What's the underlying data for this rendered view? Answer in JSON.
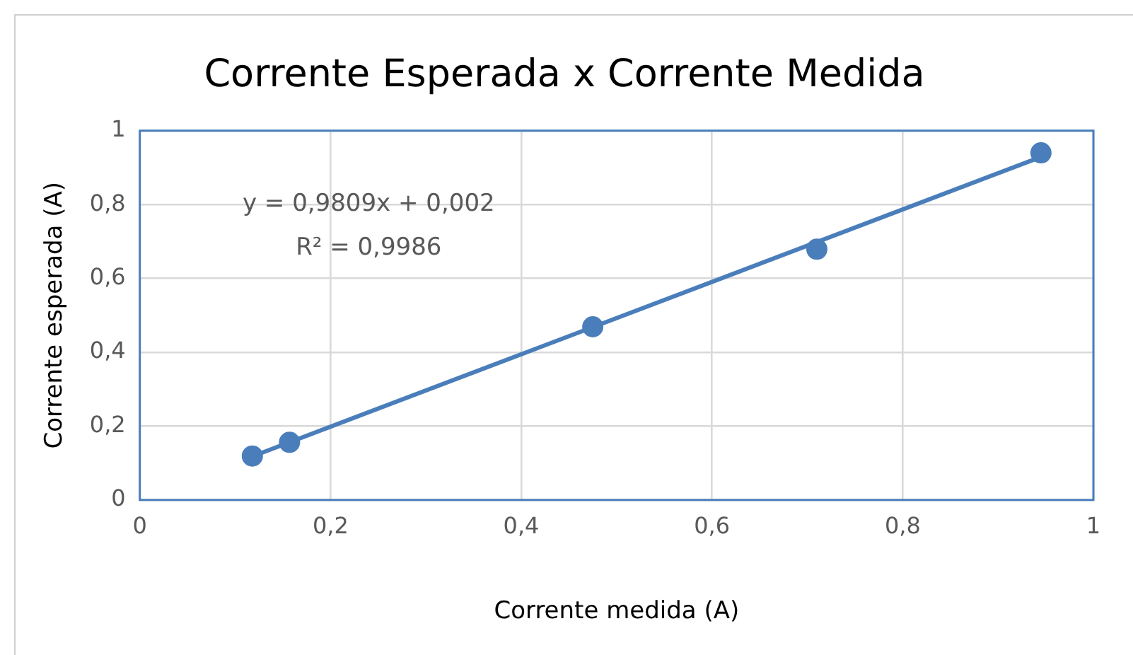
{
  "chart_data": {
    "type": "scatter",
    "title": "Corrente Esperada x Corrente Medida",
    "xlabel": "Corrente medida (A)",
    "ylabel": "Corrente esperada (A)",
    "xlim": [
      0,
      1
    ],
    "xticks": [
      {
        "value": 0,
        "label": "0"
      },
      {
        "value": 0.2,
        "label": "0,2"
      },
      {
        "value": 0.4,
        "label": "0,4"
      },
      {
        "value": 0.6,
        "label": "0,6"
      },
      {
        "value": 0.8,
        "label": "0,8"
      },
      {
        "value": 1,
        "label": "1"
      }
    ],
    "ylim": [
      0,
      1
    ],
    "yticks": [
      {
        "value": 0,
        "label": "0"
      },
      {
        "value": 0.2,
        "label": "0,2"
      },
      {
        "value": 0.4,
        "label": "0,4"
      },
      {
        "value": 0.6,
        "label": "0,6"
      },
      {
        "value": 0.8,
        "label": "0,8"
      },
      {
        "value": 1,
        "label": "1"
      }
    ],
    "grid": true,
    "legend": false,
    "marker": "circle",
    "series": [
      {
        "type": "scatter",
        "color": "#4a7ebb",
        "x": [
          0.118,
          0.157,
          0.475,
          0.71,
          0.945
        ],
        "values": [
          0.119,
          0.156,
          0.469,
          0.679,
          0.94
        ]
      },
      {
        "type": "line",
        "color": "#4a7ebb",
        "x": [
          0.118,
          0.945
        ],
        "values": [
          0.118,
          0.929
        ],
        "marker": "none",
        "line_style": "solid"
      }
    ],
    "annotations": [
      "y = 0,9809x + 0,002",
      "R² = 0,9986"
    ]
  }
}
